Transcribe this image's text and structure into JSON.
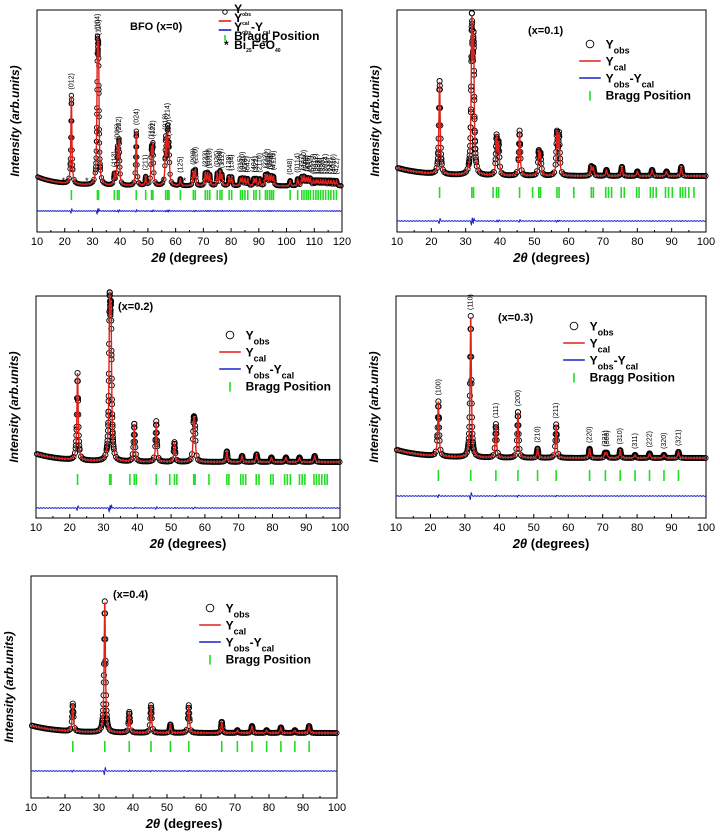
{
  "figure": {
    "x_label_unit": "(degrees)",
    "y_label": "Intensity (arb.units)",
    "legend": {
      "obs": "Yobs",
      "cal": "Ycal",
      "diff": "Yobs-Ycal",
      "bragg": "Bragg Position",
      "impurity": "Bi25FeO40"
    },
    "colors": {
      "obs": "#000000",
      "cal": "#e0201a",
      "diff": "#1a22c8",
      "bragg": "#22dd22"
    }
  },
  "chart_data": [
    {
      "type": "line",
      "title": "BFO (x=0)",
      "xlabel": "2θ (degrees)",
      "ylabel": "Intensity (arb.units)",
      "xlim": [
        10,
        120
      ],
      "xticks": [
        10,
        20,
        30,
        40,
        50,
        60,
        70,
        80,
        90,
        100,
        110,
        120
      ],
      "series": [
        {
          "name": "Yobs"
        },
        {
          "name": "Ycal"
        },
        {
          "name": "Yobs-Ycal"
        },
        {
          "name": "Bragg Position"
        }
      ],
      "peaks": [
        {
          "x": 22.4,
          "h": 0.52,
          "hkl": "(012)"
        },
        {
          "x": 31.8,
          "h": 0.72,
          "hkl": "(104)"
        },
        {
          "x": 32.2,
          "h": 0.68,
          "hkl": "(110)"
        },
        {
          "x": 37.9,
          "h": 0.06,
          "hkl": "(113)"
        },
        {
          "x": 39.0,
          "h": 0.2,
          "hkl": "(006)"
        },
        {
          "x": 39.6,
          "h": 0.25,
          "hkl": "(202)"
        },
        {
          "x": 45.8,
          "h": 0.32,
          "hkl": "(024)"
        },
        {
          "x": 49.2,
          "h": 0.05,
          "hkl": "(211)"
        },
        {
          "x": 51.3,
          "h": 0.2,
          "hkl": "(116)"
        },
        {
          "x": 51.8,
          "h": 0.22,
          "hkl": "(122)"
        },
        {
          "x": 56.4,
          "h": 0.26,
          "hkl": "(018)"
        },
        {
          "x": 57.1,
          "h": 0.3,
          "hkl": "(214)"
        },
        {
          "x": 57.6,
          "h": 0.2,
          "hkl": "(300)"
        },
        {
          "x": 61.7,
          "h": 0.04,
          "hkl": "(125)"
        },
        {
          "x": 66.4,
          "h": 0.08,
          "hkl": "(208)"
        },
        {
          "x": 67.1,
          "h": 0.09,
          "hkl": "(220)"
        },
        {
          "x": 70.7,
          "h": 0.07,
          "hkl": "(223)"
        },
        {
          "x": 71.5,
          "h": 0.07,
          "hkl": "(131)"
        },
        {
          "x": 72.3,
          "h": 0.06,
          "hkl": "(1010)"
        },
        {
          "x": 75.0,
          "h": 0.07,
          "hkl": "(036)"
        },
        {
          "x": 76.0,
          "h": 0.08,
          "hkl": "(306)"
        },
        {
          "x": 76.7,
          "h": 0.06,
          "hkl": "(312)"
        },
        {
          "x": 79.3,
          "h": 0.05,
          "hkl": "(128)"
        },
        {
          "x": 80.2,
          "h": 0.05,
          "hkl": "(134)"
        },
        {
          "x": 83.4,
          "h": 0.04,
          "hkl": "(315)"
        },
        {
          "x": 84.1,
          "h": 0.04,
          "hkl": "(0210)"
        },
        {
          "x": 85.0,
          "h": 0.04,
          "hkl": "(226)"
        },
        {
          "x": 86.0,
          "h": 0.04,
          "hkl": "(042)"
        },
        {
          "x": 88.2,
          "h": 0.04,
          "hkl": "(404)"
        },
        {
          "x": 89.0,
          "h": 0.04,
          "hkl": "(321)"
        },
        {
          "x": 90.3,
          "h": 0.04,
          "hkl": "(2110)"
        },
        {
          "x": 92.4,
          "h": 0.06,
          "hkl": "(232)"
        },
        {
          "x": 93.1,
          "h": 0.06,
          "hkl": "(1112)"
        },
        {
          "x": 93.9,
          "h": 0.05,
          "hkl": "(318)"
        },
        {
          "x": 94.6,
          "h": 0.05,
          "hkl": "(324)"
        },
        {
          "x": 95.3,
          "h": 0.05,
          "hkl": "(4110)"
        },
        {
          "x": 101.3,
          "h": 0.03,
          "hkl": "(048)"
        },
        {
          "x": 104.0,
          "h": 0.04,
          "hkl": "(0114)"
        },
        {
          "x": 105.5,
          "h": 0.05,
          "hkl": "(327)"
        },
        {
          "x": 106.3,
          "h": 0.05,
          "hkl": "(1310)"
        },
        {
          "x": 107.1,
          "h": 0.04,
          "hkl": "(146)"
        },
        {
          "x": 107.8,
          "h": 0.04,
          "hkl": "(416)"
        },
        {
          "x": 108.6,
          "h": 0.04,
          "hkl": "(502)"
        },
        {
          "x": 109.7,
          "h": 0.03,
          "hkl": "(0312)"
        },
        {
          "x": 110.6,
          "h": 0.03,
          "hkl": "(3012)"
        },
        {
          "x": 111.4,
          "h": 0.03,
          "hkl": "(238)"
        },
        {
          "x": 112.3,
          "h": 0.03,
          "hkl": "(054)"
        },
        {
          "x": 113.2,
          "h": 0.03,
          "hkl": "(330)"
        },
        {
          "x": 114.1,
          "h": 0.03,
          "hkl": "(2014)"
        },
        {
          "x": 115.1,
          "h": 0.03,
          "hkl": "(333)"
        },
        {
          "x": 116.0,
          "h": 0.03,
          "hkl": "(241)"
        },
        {
          "x": 117.0,
          "h": 0.03,
          "hkl": "(4010)"
        },
        {
          "x": 118.0,
          "h": 0.03,
          "hkl": "(422)"
        }
      ],
      "impurity_marks": [
        19.5,
        28.0,
        55.5,
        63.2
      ],
      "bragg_positions": [
        22.4,
        31.8,
        32.2,
        37.9,
        39.0,
        39.6,
        45.8,
        49.2,
        51.3,
        51.8,
        56.4,
        57.1,
        57.6,
        61.7,
        66.4,
        67.1,
        70.7,
        71.5,
        72.3,
        75.0,
        76.0,
        76.7,
        79.3,
        80.2,
        83.4,
        84.1,
        85.0,
        86.0,
        88.2,
        89.0,
        90.3,
        92.4,
        93.1,
        93.9,
        94.6,
        95.3,
        101.3,
        104.0,
        105.5,
        106.3,
        107.1,
        107.8,
        108.6,
        109.7,
        110.6,
        111.4,
        112.3,
        113.2,
        114.1,
        115.1,
        116.0,
        117.0,
        118.0
      ]
    },
    {
      "type": "line",
      "title": "(x=0.1)",
      "xlabel": "2θ (degrees)",
      "ylabel": "Intensity (arb.units)",
      "xlim": [
        10,
        100
      ],
      "xticks": [
        10,
        20,
        30,
        40,
        50,
        60,
        70,
        80,
        90,
        100
      ],
      "series": [
        {
          "name": "Yobs"
        },
        {
          "name": "Ycal"
        },
        {
          "name": "Yobs-Ycal"
        },
        {
          "name": "Bragg Position"
        }
      ],
      "peaks": [
        {
          "x": 22.4,
          "h": 0.62
        },
        {
          "x": 31.8,
          "h": 0.95
        },
        {
          "x": 32.3,
          "h": 0.8
        },
        {
          "x": 39.0,
          "h": 0.25
        },
        {
          "x": 39.6,
          "h": 0.2
        },
        {
          "x": 45.7,
          "h": 0.3
        },
        {
          "x": 51.3,
          "h": 0.15
        },
        {
          "x": 51.8,
          "h": 0.13
        },
        {
          "x": 56.6,
          "h": 0.27
        },
        {
          "x": 57.2,
          "h": 0.26
        },
        {
          "x": 66.6,
          "h": 0.06
        },
        {
          "x": 67.2,
          "h": 0.05
        },
        {
          "x": 71.0,
          "h": 0.04
        },
        {
          "x": 75.5,
          "h": 0.06
        },
        {
          "x": 80.0,
          "h": 0.03
        },
        {
          "x": 84.3,
          "h": 0.04
        },
        {
          "x": 88.5,
          "h": 0.03
        },
        {
          "x": 92.8,
          "h": 0.06
        }
      ],
      "bragg_positions": [
        22.4,
        31.8,
        32.3,
        38.0,
        39.0,
        39.6,
        45.7,
        49.5,
        51.3,
        51.8,
        56.6,
        57.2,
        61.5,
        66.6,
        67.2,
        70.8,
        71.6,
        72.5,
        75.3,
        76.2,
        79.8,
        80.5,
        83.8,
        84.6,
        85.5,
        88.2,
        89.1,
        90.2,
        92.5,
        93.2,
        94.0,
        95.0,
        96.5
      ]
    },
    {
      "type": "line",
      "title": "(x=0.2)",
      "xlabel": "2θ (degrees)",
      "ylabel": "Intensity (arb.units)",
      "xlim": [
        10,
        100
      ],
      "xticks": [
        10,
        20,
        30,
        40,
        50,
        60,
        70,
        80,
        90,
        100
      ],
      "series": [
        {
          "name": "Yobs"
        },
        {
          "name": "Ycal"
        },
        {
          "name": "Yobs-Ycal"
        },
        {
          "name": "Bragg Position"
        }
      ],
      "peaks": [
        {
          "x": 22.3,
          "h": 0.58
        },
        {
          "x": 31.8,
          "h": 0.93
        },
        {
          "x": 32.2,
          "h": 0.85
        },
        {
          "x": 39.1,
          "h": 0.25
        },
        {
          "x": 45.6,
          "h": 0.27
        },
        {
          "x": 51.0,
          "h": 0.13
        },
        {
          "x": 56.7,
          "h": 0.23
        },
        {
          "x": 57.0,
          "h": 0.2
        },
        {
          "x": 66.5,
          "h": 0.07
        },
        {
          "x": 71.0,
          "h": 0.04
        },
        {
          "x": 75.3,
          "h": 0.05
        },
        {
          "x": 79.7,
          "h": 0.03
        },
        {
          "x": 84.0,
          "h": 0.03
        },
        {
          "x": 88.0,
          "h": 0.03
        },
        {
          "x": 92.5,
          "h": 0.04
        }
      ],
      "bragg_positions": [
        22.3,
        31.8,
        32.2,
        37.8,
        39.1,
        39.7,
        45.6,
        49.6,
        51.0,
        51.7,
        56.7,
        57.1,
        61.2,
        66.5,
        67.1,
        70.6,
        71.3,
        72.1,
        75.2,
        76.0,
        79.5,
        80.2,
        83.6,
        84.4,
        85.3,
        88.0,
        88.8,
        89.6,
        92.3,
        93.0,
        93.8,
        94.6,
        95.5,
        96.2
      ]
    },
    {
      "type": "line",
      "title": "(x=0.3)",
      "xlabel": "2θ (degrees)",
      "ylabel": "Intensity (arb.units)",
      "xlim": [
        10,
        100
      ],
      "xticks": [
        10,
        20,
        30,
        40,
        50,
        60,
        70,
        80,
        90,
        100
      ],
      "series": [
        {
          "name": "Yobs"
        },
        {
          "name": "Ycal"
        },
        {
          "name": "Yobs-Ycal"
        },
        {
          "name": "Bragg Position"
        }
      ],
      "peaks": [
        {
          "x": 22.3,
          "h": 0.36,
          "hkl": "(100)"
        },
        {
          "x": 31.7,
          "h": 0.93,
          "hkl": "(110)"
        },
        {
          "x": 39.0,
          "h": 0.22,
          "hkl": "(111)"
        },
        {
          "x": 45.4,
          "h": 0.3,
          "hkl": "(200)"
        },
        {
          "x": 51.1,
          "h": 0.06,
          "hkl": "(210)"
        },
        {
          "x": 56.5,
          "h": 0.22,
          "hkl": "(211)"
        },
        {
          "x": 66.2,
          "h": 0.06,
          "hkl": "(220)"
        },
        {
          "x": 70.7,
          "h": 0.03,
          "hkl": "(221)"
        },
        {
          "x": 71.2,
          "h": 0.03,
          "hkl": "(300)"
        },
        {
          "x": 75.1,
          "h": 0.05,
          "hkl": "(310)"
        },
        {
          "x": 79.4,
          "h": 0.02,
          "hkl": "(311)"
        },
        {
          "x": 83.6,
          "h": 0.03,
          "hkl": "(222)"
        },
        {
          "x": 87.8,
          "h": 0.02,
          "hkl": "(320)"
        },
        {
          "x": 92.0,
          "h": 0.04,
          "hkl": "(321)"
        }
      ],
      "bragg_positions": [
        22.3,
        31.7,
        39.0,
        45.4,
        51.1,
        56.5,
        66.2,
        70.8,
        75.1,
        79.4,
        83.6,
        87.8,
        92.0
      ]
    },
    {
      "type": "line",
      "title": "(x=0.4)",
      "xlabel": "2θ (degrees)",
      "ylabel": "Intensity (arb.units)",
      "xlim": [
        10,
        100
      ],
      "xticks": [
        10,
        20,
        30,
        40,
        50,
        60,
        70,
        80,
        90,
        100
      ],
      "series": [
        {
          "name": "Yobs"
        },
        {
          "name": "Ycal"
        },
        {
          "name": "Yobs-Ycal"
        },
        {
          "name": "Bragg Position"
        }
      ],
      "peaks": [
        {
          "x": 22.3,
          "h": 0.2
        },
        {
          "x": 31.7,
          "h": 0.95
        },
        {
          "x": 38.9,
          "h": 0.15
        },
        {
          "x": 45.3,
          "h": 0.2
        },
        {
          "x": 51.0,
          "h": 0.06
        },
        {
          "x": 56.4,
          "h": 0.2
        },
        {
          "x": 66.1,
          "h": 0.08
        },
        {
          "x": 70.7,
          "h": 0.02
        },
        {
          "x": 75.0,
          "h": 0.05
        },
        {
          "x": 79.3,
          "h": 0.02
        },
        {
          "x": 83.5,
          "h": 0.04
        },
        {
          "x": 87.6,
          "h": 0.02
        },
        {
          "x": 91.8,
          "h": 0.05
        }
      ],
      "bragg_positions": [
        22.3,
        31.7,
        38.9,
        45.3,
        51.0,
        56.4,
        66.1,
        70.7,
        75.0,
        79.3,
        83.5,
        87.6,
        91.8
      ]
    }
  ]
}
